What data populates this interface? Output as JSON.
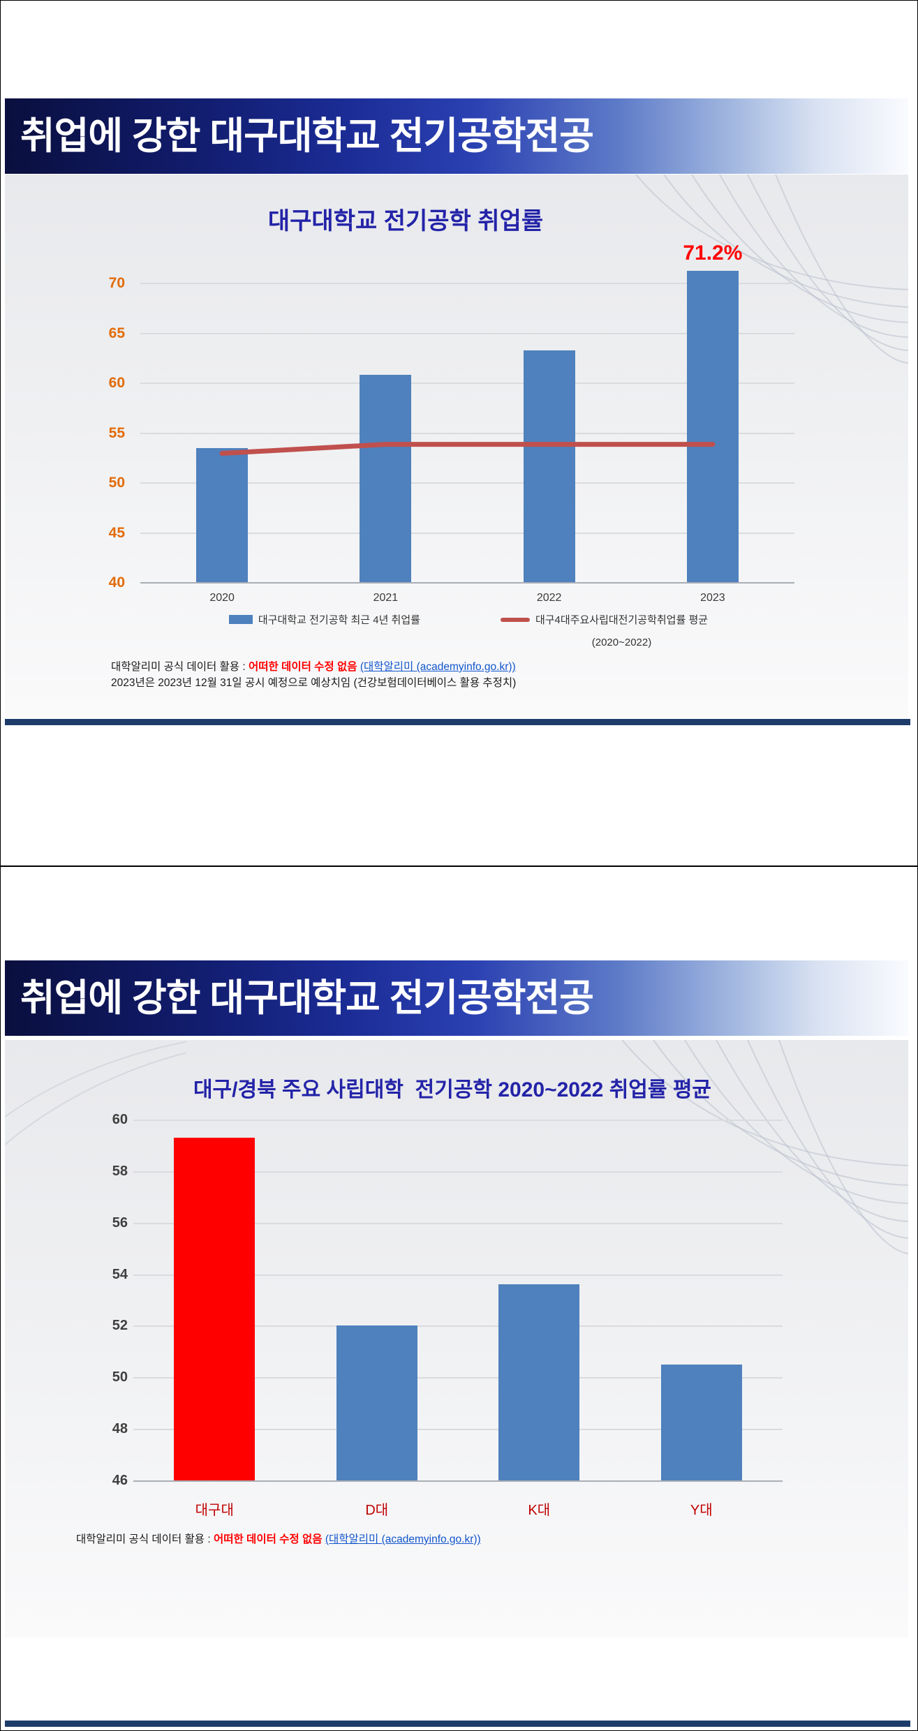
{
  "slides": [
    {
      "header_title": "취업에 강한 대구대학교 전기공학전공",
      "legend": {
        "bar_label": "대구대학교 전기공학 최근 4년 취업률",
        "line_label": "대구4대주요사립대전기공학취업률 평균",
        "line_sublabel": "(2020~2022)"
      },
      "footnote": {
        "prefix": "대학알리미 공식 데이터 활용 : ",
        "highlight": "어떠한 데이터 수정 없음",
        "link": "(대학알리미 (academyinfo.go.kr))",
        "line2": "2023년은 2023년 12월 31일 공시 예정으로 예상치임 (건강보험데이터베이스 활용 추정치)"
      }
    },
    {
      "header_title": "취업에 강한 대구대학교 전기공학전공",
      "footnote": {
        "prefix": "대학알리미 공식 데이터 활용 : ",
        "highlight": "어떠한 데이터 수정 없음",
        "link": "(대학알리미 (academyinfo.go.kr))"
      }
    }
  ],
  "chart_data": [
    {
      "type": "bar",
      "title": "대구대학교 전기공학 취업률",
      "categories": [
        "2020",
        "2021",
        "2022",
        "2023"
      ],
      "series": [
        {
          "kind": "bar",
          "name": "대구대학교 전기공학 최근 4년 취업률",
          "color": "#4E81BD",
          "values": [
            53.4,
            60.8,
            63.2,
            71.2
          ]
        },
        {
          "kind": "line",
          "name": "대구4대주요사립대전기공학취업률 평균 (2020~2022)",
          "color": "#C0504D",
          "values": [
            52.9,
            53.8,
            53.8,
            53.8
          ]
        }
      ],
      "ylim": [
        40,
        70
      ],
      "ytick_step": 5,
      "grid": true,
      "legend_position": "bottom",
      "ylabel_color": "#E26B0A",
      "xlabel_color": "#3A3A3A",
      "annotations": [
        {
          "category": "2023",
          "text": "71.2%",
          "color": "#FF0000"
        }
      ]
    },
    {
      "type": "bar",
      "title": "대구/경북 주요 사립대학  전기공학 2020~2022 취업률 평균",
      "categories": [
        "대구대",
        "D대",
        "K대",
        "Y대"
      ],
      "series": [
        {
          "kind": "bar",
          "colors": [
            "#FF0000",
            "#4E81BD",
            "#4E81BD",
            "#4E81BD"
          ],
          "values": [
            59.3,
            52.0,
            53.6,
            50.5
          ]
        }
      ],
      "ylim": [
        46,
        60
      ],
      "ytick_step": 2,
      "grid": true,
      "legend_position": "none",
      "ylabel_color": "#3F3F3F",
      "xlabel_color": "#C00000"
    }
  ]
}
